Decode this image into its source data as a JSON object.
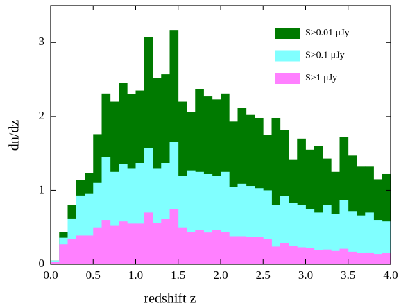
{
  "chart_data": {
    "type": "histogram",
    "xlabel": "redshift z",
    "ylabel": "dn/dz",
    "bins": [
      0,
      0.1,
      0.2,
      0.3,
      0.4,
      0.5,
      0.6,
      0.7,
      0.8,
      0.9,
      1.0,
      1.1,
      1.2,
      1.3,
      1.4,
      1.5,
      1.6,
      1.7,
      1.8,
      1.9,
      2.0,
      2.1,
      2.2,
      2.3,
      2.4,
      2.5,
      2.6,
      2.7,
      2.8,
      2.9,
      3.0,
      3.1,
      3.2,
      3.3,
      3.4,
      3.5,
      3.6,
      3.7,
      3.8,
      3.9,
      4.0
    ],
    "series": [
      {
        "name": "S>0.01 μJy",
        "color": "#007a00",
        "values": [
          0.05,
          0.44,
          0.8,
          1.14,
          1.23,
          1.76,
          2.31,
          2.2,
          2.45,
          2.3,
          2.35,
          3.07,
          2.52,
          2.57,
          3.17,
          2.2,
          2.06,
          2.37,
          2.27,
          2.23,
          2.31,
          1.93,
          2.12,
          2.02,
          1.98,
          1.75,
          1.98,
          1.82,
          1.42,
          1.7,
          1.55,
          1.6,
          1.43,
          1.25,
          1.72,
          1.47,
          1.32,
          1.32,
          1.15,
          1.22
        ]
      },
      {
        "name": "S>0.1 μJy",
        "color": "#80ffff",
        "values": [
          0.05,
          0.36,
          0.62,
          0.93,
          0.96,
          1.1,
          1.45,
          1.25,
          1.36,
          1.3,
          1.37,
          1.57,
          1.3,
          1.37,
          1.66,
          1.2,
          1.27,
          1.25,
          1.22,
          1.2,
          1.25,
          1.05,
          1.09,
          1.06,
          1.03,
          1.0,
          0.8,
          0.92,
          0.83,
          0.8,
          0.75,
          0.7,
          0.8,
          0.68,
          0.87,
          0.72,
          0.66,
          0.7,
          0.6,
          0.58
        ]
      },
      {
        "name": "S>1 μJy",
        "color": "#ff80ff",
        "values": [
          0.03,
          0.27,
          0.34,
          0.39,
          0.39,
          0.5,
          0.6,
          0.52,
          0.58,
          0.55,
          0.55,
          0.7,
          0.56,
          0.61,
          0.75,
          0.5,
          0.44,
          0.46,
          0.43,
          0.46,
          0.44,
          0.38,
          0.38,
          0.37,
          0.37,
          0.34,
          0.24,
          0.29,
          0.25,
          0.23,
          0.22,
          0.19,
          0.2,
          0.18,
          0.21,
          0.17,
          0.15,
          0.16,
          0.14,
          0.15
        ]
      }
    ],
    "xlim": [
      0,
      4
    ],
    "xticks": [
      {
        "value": 0,
        "label": "0.0"
      },
      0.5,
      {
        "value": 1,
        "label": "1.0"
      },
      1.5,
      {
        "value": 2,
        "label": "2.0"
      },
      2.5,
      {
        "value": 3,
        "label": "3.0"
      },
      3.5,
      {
        "value": 4,
        "label": "4.0"
      }
    ],
    "ylim": [
      0,
      3.5
    ],
    "yticks": [
      0,
      1,
      2,
      3
    ],
    "legend": "upper right"
  }
}
